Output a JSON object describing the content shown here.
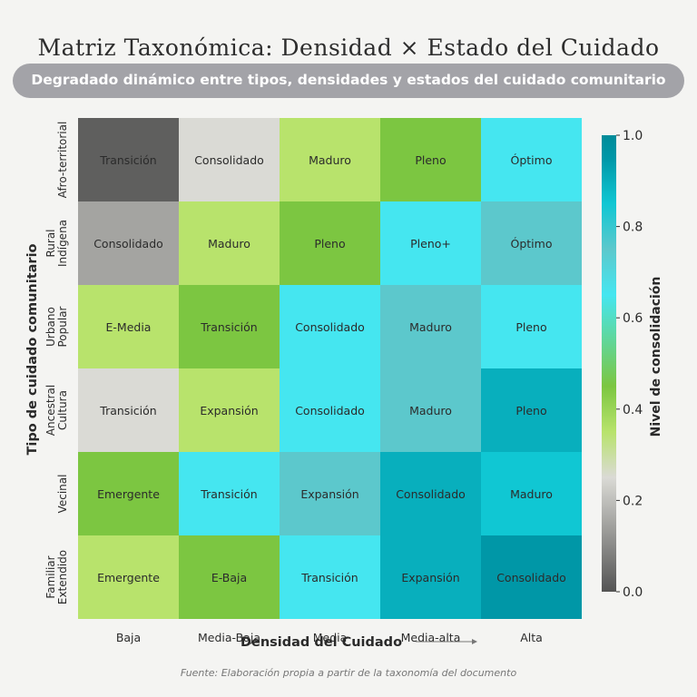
{
  "chart_data": {
    "type": "heatmap",
    "title": "Matriz Taxonómica: Densidad × Estado del Cuidado",
    "subtitle": "Degradado dinámico entre tipos, densidades y estados del cuidado comunitario",
    "xlabel": "Densidad del Cuidado",
    "ylabel": "Tipo de cuidado comunitario",
    "colorbar_label": "Nivel de consolidación",
    "x_categories": [
      "Baja",
      "Media-Baja",
      "Media",
      "Media-alta",
      "Alta"
    ],
    "y_categories": [
      [
        "Afro-territorial"
      ],
      [
        "Rural",
        "Indígena"
      ],
      [
        "Urbano",
        "Popular"
      ],
      [
        "Ancestral",
        "Cultura"
      ],
      [
        "Vecinal"
      ],
      [
        "Familiar",
        "Extendido"
      ]
    ],
    "values": [
      [
        0.02,
        0.25,
        0.35,
        0.45,
        0.65
      ],
      [
        0.15,
        0.35,
        0.45,
        0.65,
        0.75
      ],
      [
        0.35,
        0.45,
        0.65,
        0.75,
        0.65
      ],
      [
        0.25,
        0.35,
        0.65,
        0.75,
        0.9
      ],
      [
        0.45,
        0.65,
        0.75,
        0.9,
        0.85
      ],
      [
        0.35,
        0.45,
        0.65,
        0.9,
        0.95
      ]
    ],
    "cell_labels": [
      [
        "Transición",
        "Consolidado",
        "Maduro",
        "Pleno",
        "Óptimo"
      ],
      [
        "Consolidado",
        "Maduro",
        "Pleno",
        "Pleno+",
        "Óptimo"
      ],
      [
        "E-Media",
        "Transición",
        "Consolidado",
        "Maduro",
        "Pleno"
      ],
      [
        "Transición",
        "Expansión",
        "Consolidado",
        "Maduro",
        "Pleno"
      ],
      [
        "Emergente",
        "Transición",
        "Expansión",
        "Consolidado",
        "Maduro"
      ],
      [
        "Emergente",
        "E-Baja",
        "Transición",
        "Expansión",
        "Consolidado"
      ]
    ],
    "colorbar_ticks": [
      "0.0",
      "0.2",
      "0.4",
      "0.6",
      "0.8",
      "1.0"
    ],
    "vmin": 0,
    "vmax": 1,
    "colormap_stops": [
      {
        "v": 0.0,
        "color": "#545454"
      },
      {
        "v": 0.25,
        "color": "#dadad5"
      },
      {
        "v": 0.35,
        "color": "#b8e36c"
      },
      {
        "v": 0.45,
        "color": "#7cc641"
      },
      {
        "v": 0.65,
        "color": "#45e6f0"
      },
      {
        "v": 0.75,
        "color": "#5cc8cc"
      },
      {
        "v": 0.85,
        "color": "#10c7d3"
      },
      {
        "v": 0.95,
        "color": "#0097a7"
      },
      {
        "v": 1.0,
        "color": "#008b99"
      }
    ]
  },
  "source_note": "Fuente: Elaboración propia a partir de la taxonomía del documento"
}
